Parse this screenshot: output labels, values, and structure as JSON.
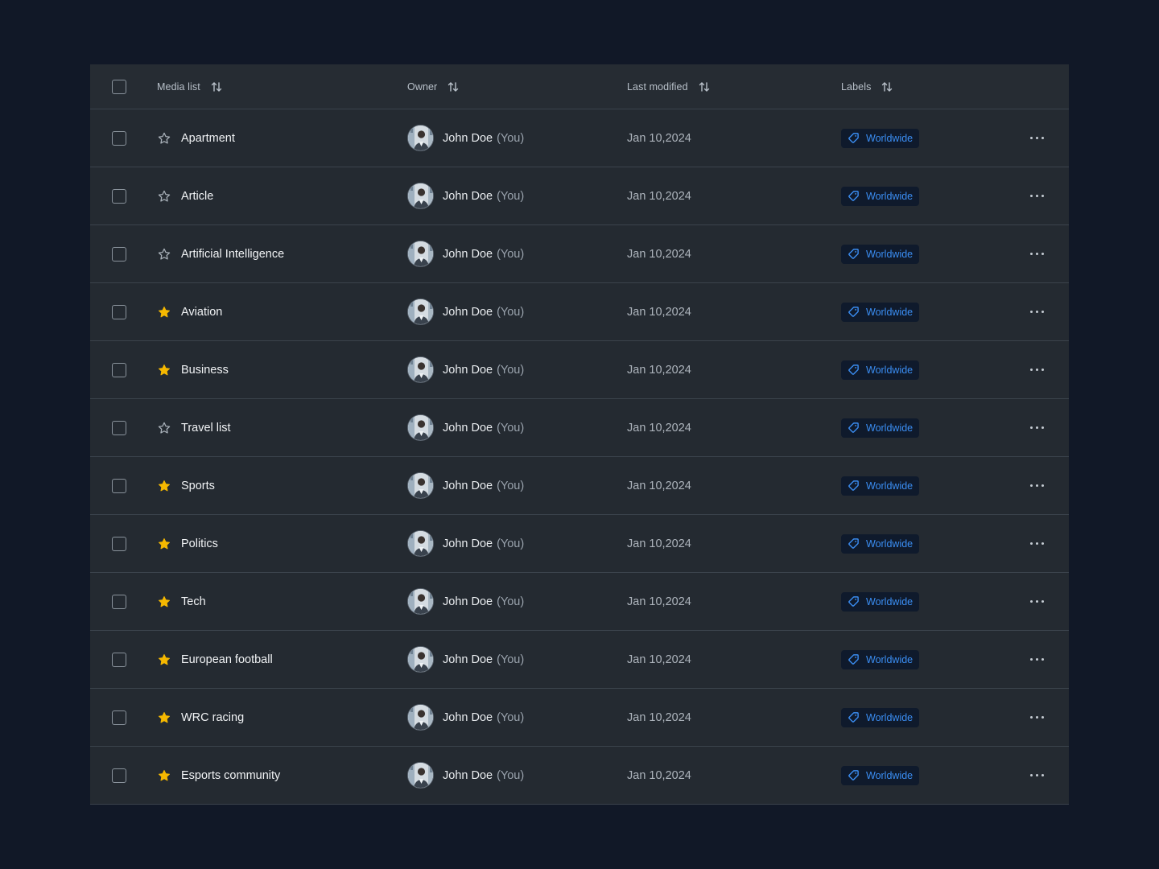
{
  "colors": {
    "page_bg": "#111827",
    "table_bg": "#242a31",
    "star_active": "#f5b800",
    "label_text": "#3b8ef3"
  },
  "header": {
    "columns": [
      "Media list",
      "Owner",
      "Last modified",
      "Labels"
    ]
  },
  "rows": [
    {
      "name": "Apartment",
      "starred": false,
      "owner": "John Doe",
      "owner_suffix": "(You)",
      "modified": "Jan 10,2024",
      "label": "Worldwide"
    },
    {
      "name": "Article",
      "starred": false,
      "owner": "John Doe",
      "owner_suffix": "(You)",
      "modified": "Jan 10,2024",
      "label": "Worldwide"
    },
    {
      "name": "Artificial Intelligence",
      "starred": false,
      "owner": "John Doe",
      "owner_suffix": "(You)",
      "modified": "Jan 10,2024",
      "label": "Worldwide"
    },
    {
      "name": "Aviation",
      "starred": true,
      "owner": "John Doe",
      "owner_suffix": "(You)",
      "modified": "Jan 10,2024",
      "label": "Worldwide"
    },
    {
      "name": "Business",
      "starred": true,
      "owner": "John Doe",
      "owner_suffix": "(You)",
      "modified": "Jan 10,2024",
      "label": "Worldwide"
    },
    {
      "name": "Travel list",
      "starred": false,
      "owner": "John Doe",
      "owner_suffix": "(You)",
      "modified": "Jan 10,2024",
      "label": "Worldwide"
    },
    {
      "name": "Sports",
      "starred": true,
      "owner": "John Doe",
      "owner_suffix": "(You)",
      "modified": "Jan 10,2024",
      "label": "Worldwide"
    },
    {
      "name": "Politics",
      "starred": true,
      "owner": "John Doe",
      "owner_suffix": "(You)",
      "modified": "Jan 10,2024",
      "label": "Worldwide"
    },
    {
      "name": "Tech",
      "starred": true,
      "owner": "John Doe",
      "owner_suffix": "(You)",
      "modified": "Jan 10,2024",
      "label": "Worldwide"
    },
    {
      "name": "European football",
      "starred": true,
      "owner": "John Doe",
      "owner_suffix": "(You)",
      "modified": "Jan 10,2024",
      "label": "Worldwide"
    },
    {
      "name": "WRC racing",
      "starred": true,
      "owner": "John Doe",
      "owner_suffix": "(You)",
      "modified": "Jan 10,2024",
      "label": "Worldwide"
    },
    {
      "name": "Esports community",
      "starred": true,
      "owner": "John Doe",
      "owner_suffix": "(You)",
      "modified": "Jan 10,2024",
      "label": "Worldwide"
    }
  ],
  "icons": {
    "sort": "sort-arrows-icon",
    "star": "star-icon",
    "tag": "tag-icon",
    "more": "more-horizontal-icon"
  }
}
